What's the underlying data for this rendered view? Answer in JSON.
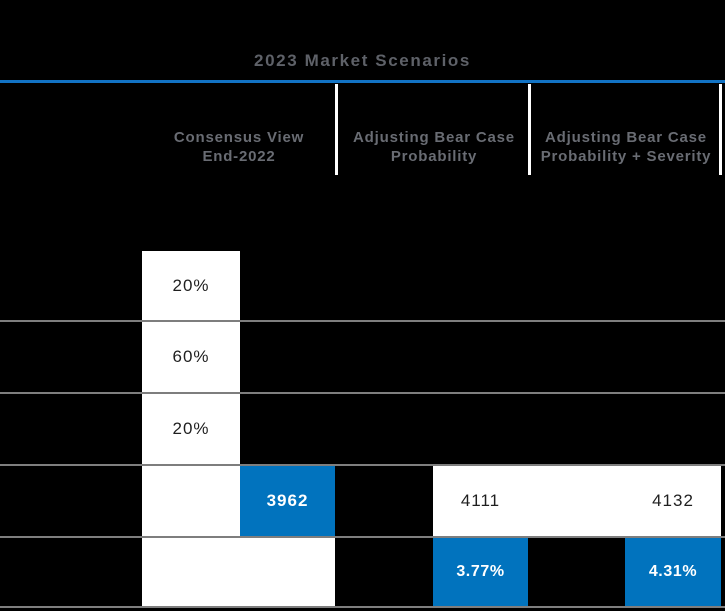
{
  "colors": {
    "accent_blue": "#0173BE",
    "rule_blue": "#1273C4",
    "grid_gray": "#7E7E7E",
    "header_text": "#696C73",
    "title_text": "#5E6168",
    "dark_text": "#1F1F1F",
    "cell_white": "#FFFFFF",
    "bg_black": "#000000"
  },
  "table": {
    "title": "2023 Market Scenarios",
    "headers": [
      {
        "line1": "Consensus View",
        "line2": "End-2022"
      },
      {
        "line1": "Adjusting Bear Case",
        "line2": "Probability"
      },
      {
        "line1": "Adjusting Bear Case",
        "line2": "Probability + Severity"
      }
    ],
    "probabilities": [
      {
        "value": "20%"
      },
      {
        "value": "60%"
      },
      {
        "value": "20%"
      }
    ],
    "levels": {
      "consensus": "3962",
      "bear_prob": "4111",
      "bear_prob_severity": "4132"
    },
    "yields": {
      "bear_prob": "3.77%",
      "bear_prob_severity": "4.31%"
    }
  },
  "chart_data": {
    "type": "table",
    "title": "2023 Market Scenarios",
    "columns": [
      "Consensus View End-2022",
      "Adjusting Bear Case Probability",
      "Adjusting Bear Case Probability + Severity"
    ],
    "rows": [
      [
        "20%",
        "",
        ""
      ],
      [
        "60%",
        "",
        ""
      ],
      [
        "20%",
        "",
        ""
      ],
      [
        "3962",
        "4111",
        "4132"
      ],
      [
        "",
        "3.77%",
        "4.31%"
      ]
    ],
    "highlighted_values": [
      "3962",
      "3.77%",
      "4.31%"
    ],
    "highlight_color": "#0173BE",
    "layout_hints": {
      "background": "black",
      "gridlines": "horizontal gray full-width",
      "header_separators": "white vertical lines"
    }
  }
}
